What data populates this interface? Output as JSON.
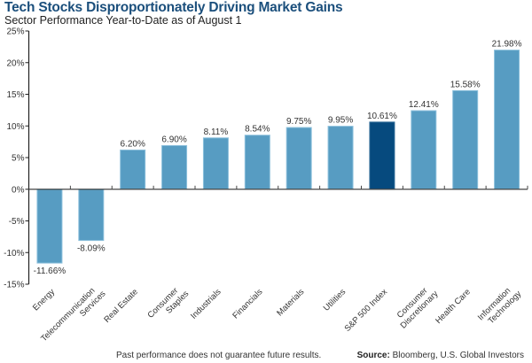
{
  "chart_data": {
    "type": "bar",
    "title": "Tech Stocks Disproportionately Driving Market Gains",
    "subtitle": "Sector Performance Year-to-Date as of August 1",
    "xlabel": "",
    "ylabel": "",
    "ylim": [
      -15,
      25
    ],
    "yticks": [
      25,
      20,
      15,
      10,
      5,
      0,
      -5,
      -10,
      -15
    ],
    "ytick_labels": [
      "25%",
      "20%",
      "15%",
      "10%",
      "5%",
      "0%",
      "-5%",
      "-10%",
      "-15%"
    ],
    "grid": false,
    "legend": "none",
    "categories": [
      [
        "Energy"
      ],
      [
        "Telecommunication",
        "Services"
      ],
      [
        "Real Estate"
      ],
      [
        "Consumer",
        "Staples"
      ],
      [
        "Industrials"
      ],
      [
        "Financials"
      ],
      [
        "Materials"
      ],
      [
        "Utilities"
      ],
      [
        "S&P 500 Index"
      ],
      [
        "Consumer",
        "Discretionary"
      ],
      [
        "Health Care"
      ],
      [
        "Information",
        "Technology"
      ]
    ],
    "values": [
      -11.66,
      -8.09,
      6.2,
      6.9,
      8.11,
      8.54,
      9.75,
      9.95,
      10.61,
      12.41,
      15.58,
      21.98
    ],
    "value_labels": [
      "-11.66%",
      "-8.09%",
      "6.20%",
      "6.90%",
      "8.11%",
      "8.54%",
      "9.75%",
      "9.95%",
      "10.61%",
      "12.41%",
      "15.58%",
      "21.98%"
    ],
    "highlight_index": 8,
    "colors": {
      "bar": "#579cc2",
      "bar_edge": "#8cc0dc",
      "highlight": "#064a7e",
      "highlight_edge": "#2e6a97",
      "title": "#1b4f7c"
    }
  },
  "footer": {
    "note": "Past performance does not guarantee future results.",
    "source_label": "Source:",
    "source_text": " Bloomberg, U.S. Global Investors"
  }
}
